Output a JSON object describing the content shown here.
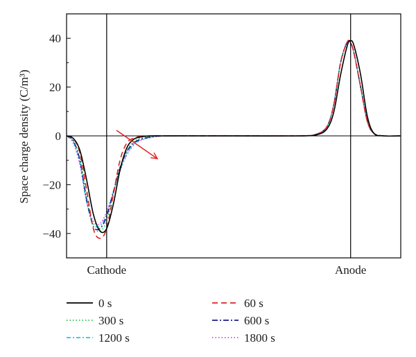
{
  "chart_data": {
    "type": "line",
    "ylabel": "Space charge density (C/m³)",
    "ylim": [
      -50,
      50
    ],
    "xlim": [
      0,
      1
    ],
    "yticks": [
      -40,
      -20,
      0,
      20,
      40
    ],
    "ytick_labels": [
      "−40",
      "−20",
      "0",
      "20",
      "40"
    ],
    "x_markers": [
      {
        "label": "Cathode",
        "x": 0.12
      },
      {
        "label": "Anode",
        "x": 0.85
      }
    ],
    "legend_placement": "bottom, below the plot",
    "annotation": "arrow indicating cathode peak broadening and shifting into the bulk with time",
    "series": [
      {
        "name": "0 s",
        "color": "#000000",
        "dash": "solid",
        "x": [
          0,
          0.02,
          0.04,
          0.06,
          0.08,
          0.1,
          0.12,
          0.14,
          0.16,
          0.18,
          0.2,
          0.22,
          0.25,
          0.3,
          0.5,
          0.7,
          0.75,
          0.78,
          0.8,
          0.82,
          0.84,
          0.85,
          0.86,
          0.88,
          0.9,
          0.92,
          0.95,
          1.0
        ],
        "y": [
          0,
          -1,
          -6,
          -18,
          -32,
          -39,
          -38,
          -28,
          -14,
          -5,
          -1.5,
          -0.5,
          0,
          0,
          0,
          0,
          0.5,
          3,
          10,
          25,
          37,
          39,
          37,
          25,
          8,
          1,
          0,
          0
        ]
      },
      {
        "name": "60 s",
        "color": "#e02020",
        "dash": "8,5",
        "x": [
          0,
          0.02,
          0.04,
          0.06,
          0.08,
          0.1,
          0.12,
          0.14,
          0.16,
          0.18,
          0.2,
          0.22,
          0.25,
          0.3,
          0.5,
          0.7,
          0.75,
          0.78,
          0.8,
          0.82,
          0.84,
          0.85,
          0.86,
          0.88,
          0.9,
          0.92,
          0.95,
          1.0
        ],
        "y": [
          0,
          -1,
          -7,
          -22,
          -38,
          -42,
          -38,
          -24,
          -10,
          -3,
          -1,
          -0.3,
          0,
          0,
          0,
          0,
          0.8,
          4,
          13,
          30,
          38.5,
          38,
          34,
          20,
          6,
          1,
          0,
          0
        ]
      },
      {
        "name": "300 s",
        "color": "#22c04a",
        "dash": "1.5,3",
        "x": [
          0,
          0.02,
          0.04,
          0.06,
          0.08,
          0.1,
          0.12,
          0.14,
          0.16,
          0.18,
          0.2,
          0.22,
          0.25,
          0.3,
          0.5,
          0.7,
          0.75,
          0.78,
          0.8,
          0.82,
          0.84,
          0.85,
          0.86,
          0.88,
          0.9,
          0.92,
          0.95,
          1.0
        ],
        "y": [
          0,
          -2,
          -9,
          -25,
          -37,
          -39,
          -35,
          -24,
          -13,
          -6,
          -2.5,
          -1,
          -0.3,
          0,
          0,
          0,
          0.8,
          4,
          13,
          30,
          38.5,
          38,
          34,
          20,
          6,
          1,
          0,
          0
        ]
      },
      {
        "name": "600 s",
        "color": "#1a1a8c",
        "dash": "8,3,2,3",
        "x": [
          0,
          0.02,
          0.04,
          0.06,
          0.08,
          0.1,
          0.12,
          0.14,
          0.16,
          0.18,
          0.2,
          0.22,
          0.25,
          0.3,
          0.5,
          0.7,
          0.75,
          0.78,
          0.8,
          0.82,
          0.84,
          0.85,
          0.86,
          0.88,
          0.9,
          0.92,
          0.95,
          1.0
        ],
        "y": [
          0,
          -2,
          -10,
          -26,
          -37,
          -38,
          -33,
          -23,
          -13,
          -6.5,
          -3,
          -1.5,
          -0.5,
          0,
          0,
          0,
          0.8,
          4,
          13,
          30,
          38.5,
          38,
          34,
          20,
          6,
          1,
          0,
          0
        ]
      },
      {
        "name": "1200 s",
        "color": "#20c8e0",
        "dash": "6,3,2,3",
        "x": [
          0,
          0.02,
          0.04,
          0.06,
          0.08,
          0.1,
          0.12,
          0.14,
          0.16,
          0.18,
          0.2,
          0.22,
          0.25,
          0.3,
          0.5,
          0.7,
          0.75,
          0.78,
          0.8,
          0.82,
          0.84,
          0.85,
          0.86,
          0.88,
          0.9,
          0.92,
          0.95,
          1.0
        ],
        "y": [
          0,
          -2.5,
          -11,
          -27,
          -36,
          -37,
          -32,
          -23,
          -14,
          -7.5,
          -3.5,
          -1.8,
          -0.6,
          0,
          0,
          0,
          0.8,
          4,
          13,
          30,
          38.5,
          38,
          34,
          20,
          6,
          1,
          0,
          0
        ]
      },
      {
        "name": "1800 s",
        "color": "#e040e0",
        "dash": "1.5,3",
        "x": [
          0,
          0.02,
          0.04,
          0.06,
          0.08,
          0.1,
          0.12,
          0.14,
          0.16,
          0.18,
          0.2,
          0.22,
          0.25,
          0.3,
          0.5,
          0.7,
          0.75,
          0.78,
          0.8,
          0.82,
          0.84,
          0.85,
          0.86,
          0.88,
          0.9,
          0.92,
          0.95,
          1.0
        ],
        "y": [
          0,
          -3,
          -12,
          -27,
          -35,
          -36,
          -31,
          -23,
          -14.5,
          -8,
          -4,
          -2,
          -0.8,
          0,
          0,
          0,
          0.8,
          4,
          13,
          30,
          38.5,
          38,
          34,
          20,
          6,
          1,
          0,
          0
        ]
      }
    ],
    "legend_order": [
      "0 s",
      "60 s",
      "300 s",
      "600 s",
      "1200 s",
      "1800 s"
    ]
  }
}
